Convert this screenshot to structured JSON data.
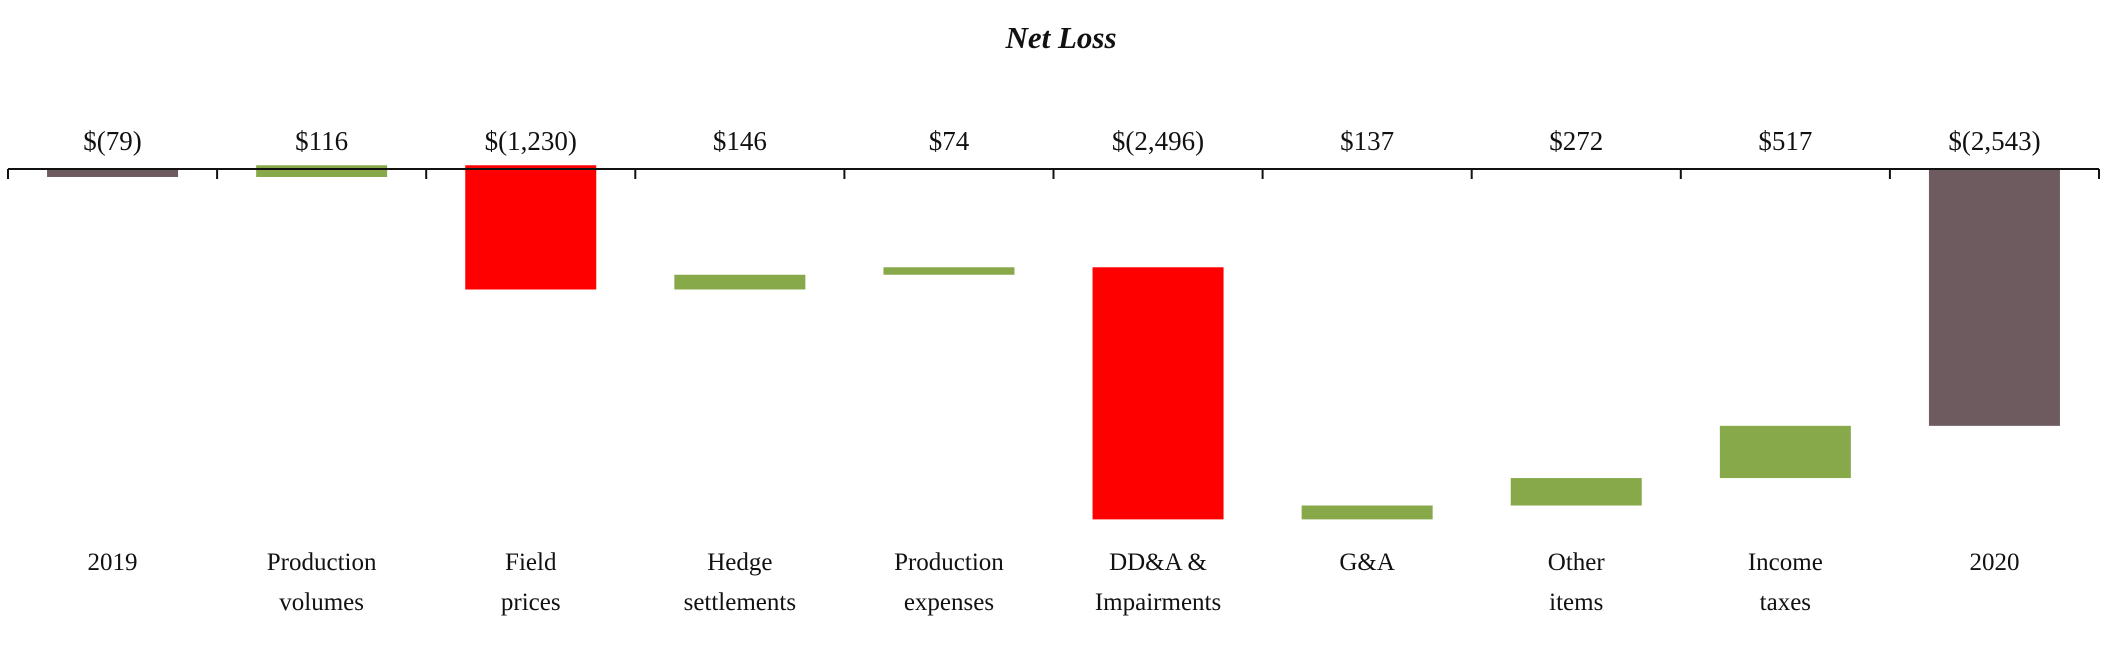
{
  "chart_data": {
    "type": "waterfall",
    "title": "Net Loss",
    "xlabel": "",
    "ylabel": "",
    "categories": [
      [
        "2019"
      ],
      [
        "Production",
        "volumes"
      ],
      [
        "Field",
        "prices"
      ],
      [
        "Hedge",
        "settlements"
      ],
      [
        "Production",
        "expenses"
      ],
      [
        "DD&A &",
        "Impairments"
      ],
      [
        "G&A"
      ],
      [
        "Other",
        "items"
      ],
      [
        "Income",
        "taxes"
      ],
      [
        "2020"
      ]
    ],
    "values": [
      -79,
      116,
      -1230,
      146,
      74,
      -2496,
      137,
      272,
      517,
      -2543
    ],
    "kinds": [
      "total",
      "delta",
      "delta",
      "delta",
      "delta",
      "delta",
      "delta",
      "delta",
      "delta",
      "total"
    ],
    "value_labels": [
      "$(79)",
      "$116",
      "$(1,230)",
      "$146",
      "$74",
      "$(2,496)",
      "$137",
      "$272",
      "$517",
      "$(2,543)"
    ],
    "ylim": [
      -3500,
      50
    ],
    "grid": false,
    "colors": {
      "total": "#6e5b5f",
      "increase": "#87a94a",
      "decrease": "#ff0000"
    }
  }
}
